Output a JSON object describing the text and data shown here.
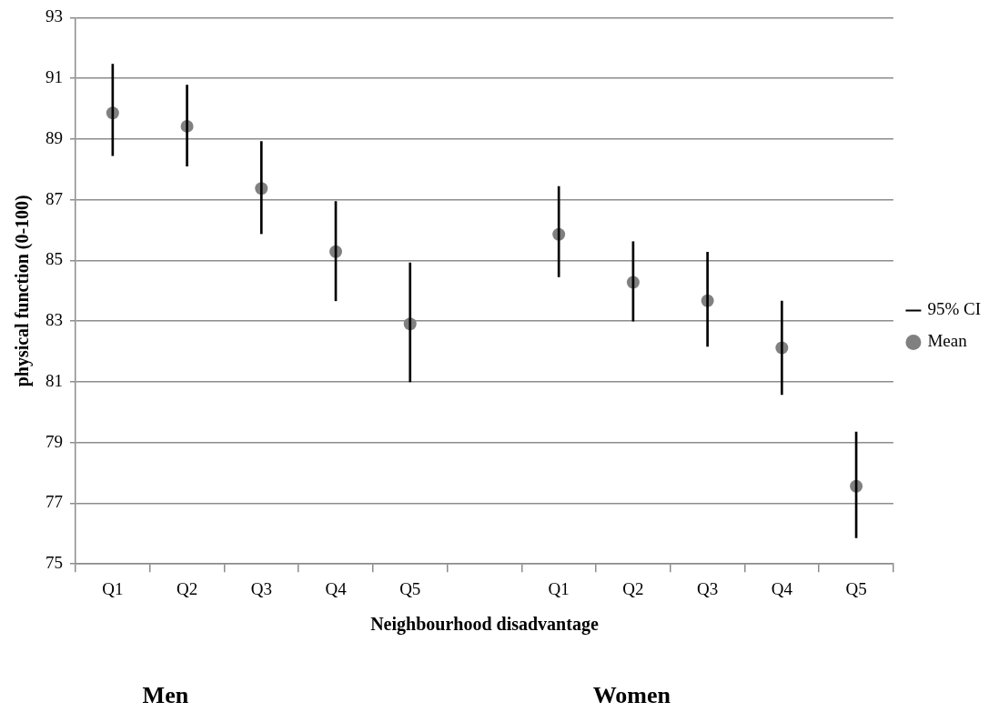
{
  "chart_data": {
    "type": "bar",
    "xlabel": "Neighbourhood disadvantage",
    "ylabel": "physical function (0-100)",
    "categories": [
      "Q1",
      "Q2",
      "Q3",
      "Q4",
      "Q5",
      null,
      "Q1",
      "Q2",
      "Q3",
      "Q4",
      "Q5"
    ],
    "series": [
      {
        "name": "95% CI",
        "color": "#000000",
        "base": [
          88.45,
          88.11,
          85.88,
          83.67,
          81.0,
          null,
          84.46,
          83.0,
          82.17,
          80.58,
          75.86
        ],
        "values": [
          3.02,
          2.67,
          3.04,
          3.27,
          3.92,
          null,
          2.98,
          2.62,
          3.1,
          3.08,
          3.49
        ]
      },
      {
        "name": "Mean",
        "type": "scatter",
        "color": "#808080",
        "marker": "circle",
        "values": [
          89.86,
          89.42,
          87.37,
          85.29,
          82.91,
          null,
          85.86,
          84.28,
          83.67,
          82.12,
          77.56
        ]
      }
    ],
    "ylim": [
      75,
      93
    ],
    "yticks": [
      75,
      77,
      79,
      81,
      83,
      85,
      87,
      89,
      91,
      93
    ],
    "grid": "y",
    "legend": "right",
    "annotations": [
      "Men",
      "Women"
    ]
  }
}
